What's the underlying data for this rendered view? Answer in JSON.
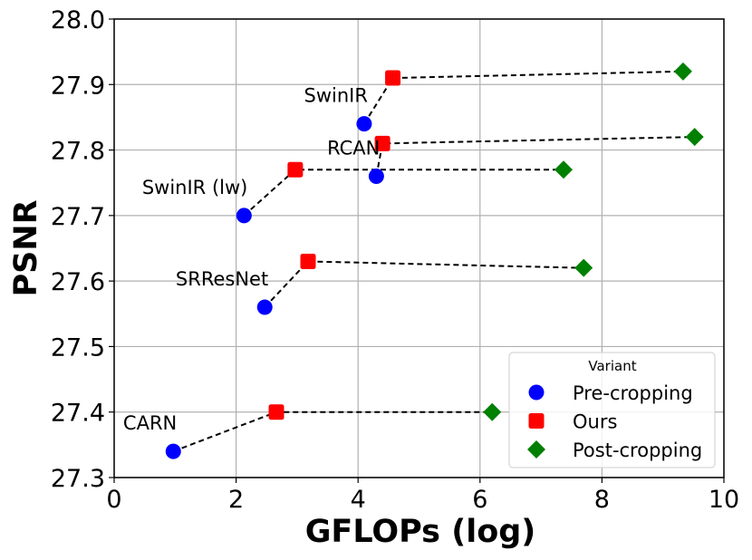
{
  "chart_data": {
    "type": "scatter",
    "title": "",
    "xlabel": "GFLOPs (log)",
    "ylabel": "PSNR",
    "xlim": [
      0,
      10
    ],
    "ylim": [
      27.3,
      28.0
    ],
    "x_ticks": [
      0,
      2,
      4,
      6,
      8,
      10
    ],
    "y_ticks": [
      "27.3",
      "27.4",
      "27.5",
      "27.6",
      "27.7",
      "27.8",
      "27.9",
      "28.0"
    ],
    "grid": true,
    "legend": {
      "title": "Variant",
      "position": "lower-right",
      "entries": [
        {
          "name": "Pre-cropping",
          "color": "#0000ff",
          "marker": "circle"
        },
        {
          "name": "Ours",
          "color": "#ff0000",
          "marker": "square"
        },
        {
          "name": "Post-cropping",
          "color": "#008000",
          "marker": "diamond"
        }
      ]
    },
    "models": [
      {
        "name": "SwinIR",
        "pre": [
          4.1,
          27.84
        ],
        "ours": [
          4.57,
          27.91
        ],
        "post": [
          9.33,
          27.92
        ]
      },
      {
        "name": "RCAN",
        "pre": [
          4.3,
          27.76
        ],
        "ours": [
          4.4,
          27.81
        ],
        "post": [
          9.52,
          27.82
        ]
      },
      {
        "name": "SwinIR (lw)",
        "pre": [
          2.13,
          27.7
        ],
        "ours": [
          2.97,
          27.77
        ],
        "post": [
          7.37,
          27.77
        ]
      },
      {
        "name": "SRResNet",
        "pre": [
          2.47,
          27.56
        ],
        "ours": [
          3.18,
          27.63
        ],
        "post": [
          7.7,
          27.62
        ]
      },
      {
        "name": "CARN",
        "pre": [
          0.97,
          27.34
        ],
        "ours": [
          2.66,
          27.4
        ],
        "post": [
          6.2,
          27.4
        ]
      }
    ]
  }
}
